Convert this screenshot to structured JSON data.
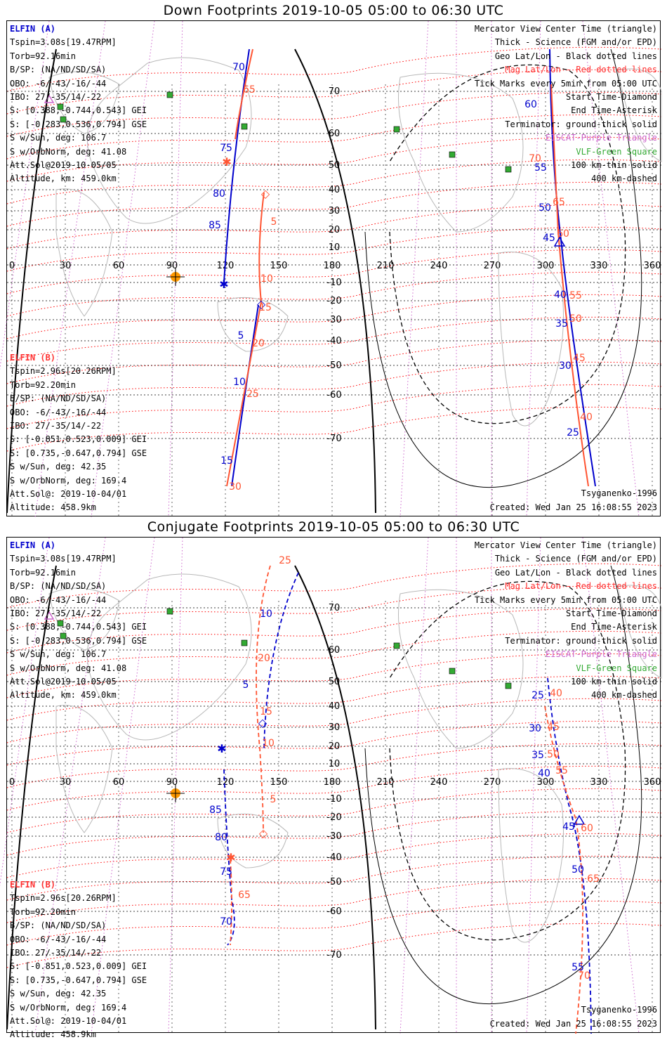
{
  "panels": [
    {
      "title": "Down Footprints 2019-10-05 05:00 to 06:30 UTC",
      "mode": "down"
    },
    {
      "title": "Conjugate Footprints 2019-10-05 05:00 to 06:30 UTC",
      "mode": "conjugate"
    }
  ],
  "elfin_a": {
    "header": "ELFIN (A)",
    "lines": [
      "Tspin=3.08s[19.47RPM]",
      "Torb=92.16min",
      "B/SP: (NA/ND/SD/SA)",
      "OBO: -6/-43/-16/-44",
      "IBO: 27/-35/14/-22",
      "S: [0.388,-0.744,0.543] GEI",
      "S: [-0.283,0.536,0.794] GSE",
      "S w/Sun, deg: 106.7",
      "S w/OrbNorm, deg: 41.08",
      "Att.Sol@2019-10-05/05",
      "Altitude, km: 459.0km"
    ]
  },
  "elfin_b": {
    "header": "ELFIN (B)",
    "lines": [
      "Tspin=2.96s[20.26RPM]",
      "Torb=92.20min",
      "B/SP: (NA/ND/SD/SA)",
      "OBO: -6/-43/-16/-44",
      "IBO: 27/-35/14/-22",
      "S: [-0.851,0.523,0.009] GEI",
      "S: [0.735,-0.647,0.794] GSE",
      "S w/Sun, deg: 42.35",
      "S w/OrbNorm, deg: 169.4",
      "Att.Sol@: 2019-10-04/01",
      "Altitude: 458.9km"
    ]
  },
  "legend": {
    "mercator": "Mercator View Center Time (triangle)",
    "thick": "Thick - Science (FGM and/or EPD)",
    "geo": "Geo Lat/Lon - Black dotted lines",
    "mag": "Mag Lat/Lon - Red dotted lines",
    "ticks": "Tick Marks every 5min from 05:00 UTC",
    "start": "Start Time-Diamond",
    "end": "End Time-Asterisk",
    "terminator": "Terminator: ground-thick solid",
    "eiscat": "EISCAT-Purple Triangle",
    "vlf": "VLF-Green Square",
    "km100": "100 km-thin solid",
    "km400": "400 km-dashed"
  },
  "footer": {
    "model": "Tsyganenko-1996",
    "created": "Created: Wed Jan 25 16:08:55 2023"
  },
  "axis": {
    "lon_ticks": [
      "0",
      "30",
      "60",
      "90",
      "120",
      "150",
      "180",
      "210",
      "240",
      "270",
      "300",
      "330",
      "360"
    ],
    "lat_ticks": [
      "70",
      "60",
      "50",
      "40",
      "30",
      "20",
      "10",
      "0",
      "-10",
      "-20",
      "-30",
      "-40",
      "-50",
      "-60",
      "-70"
    ]
  },
  "colors": {
    "elfin_a": "#0000cc",
    "elfin_b": "#ff5533",
    "mag_grid": "#ff0000",
    "geo_grid": "#000000",
    "eiscat": "#cc66cc",
    "vlf": "#33aa33",
    "sun": "#ff9900"
  },
  "down_track_labels": {
    "a_left": [
      "70",
      "75",
      "80",
      "85",
      "5",
      "10",
      "15"
    ],
    "b_left": [
      "65",
      "5",
      "10",
      "15",
      "20",
      "25",
      "30"
    ],
    "a_right": [
      "60",
      "55",
      "50",
      "45",
      "40",
      "35",
      "30",
      "25"
    ],
    "b_right": [
      "70",
      "65",
      "60",
      "55",
      "50",
      "45",
      "40"
    ]
  },
  "conj_track_labels": {
    "a_left": [
      "10",
      "5",
      "85",
      "80",
      "75",
      "70"
    ],
    "b_left": [
      "25",
      "20",
      "15",
      "10",
      "5",
      "65"
    ],
    "a_right": [
      "25",
      "30",
      "35",
      "40",
      "45",
      "50",
      "55"
    ],
    "b_right": [
      "40",
      "45",
      "50",
      "55",
      "60",
      "65",
      "70"
    ]
  }
}
